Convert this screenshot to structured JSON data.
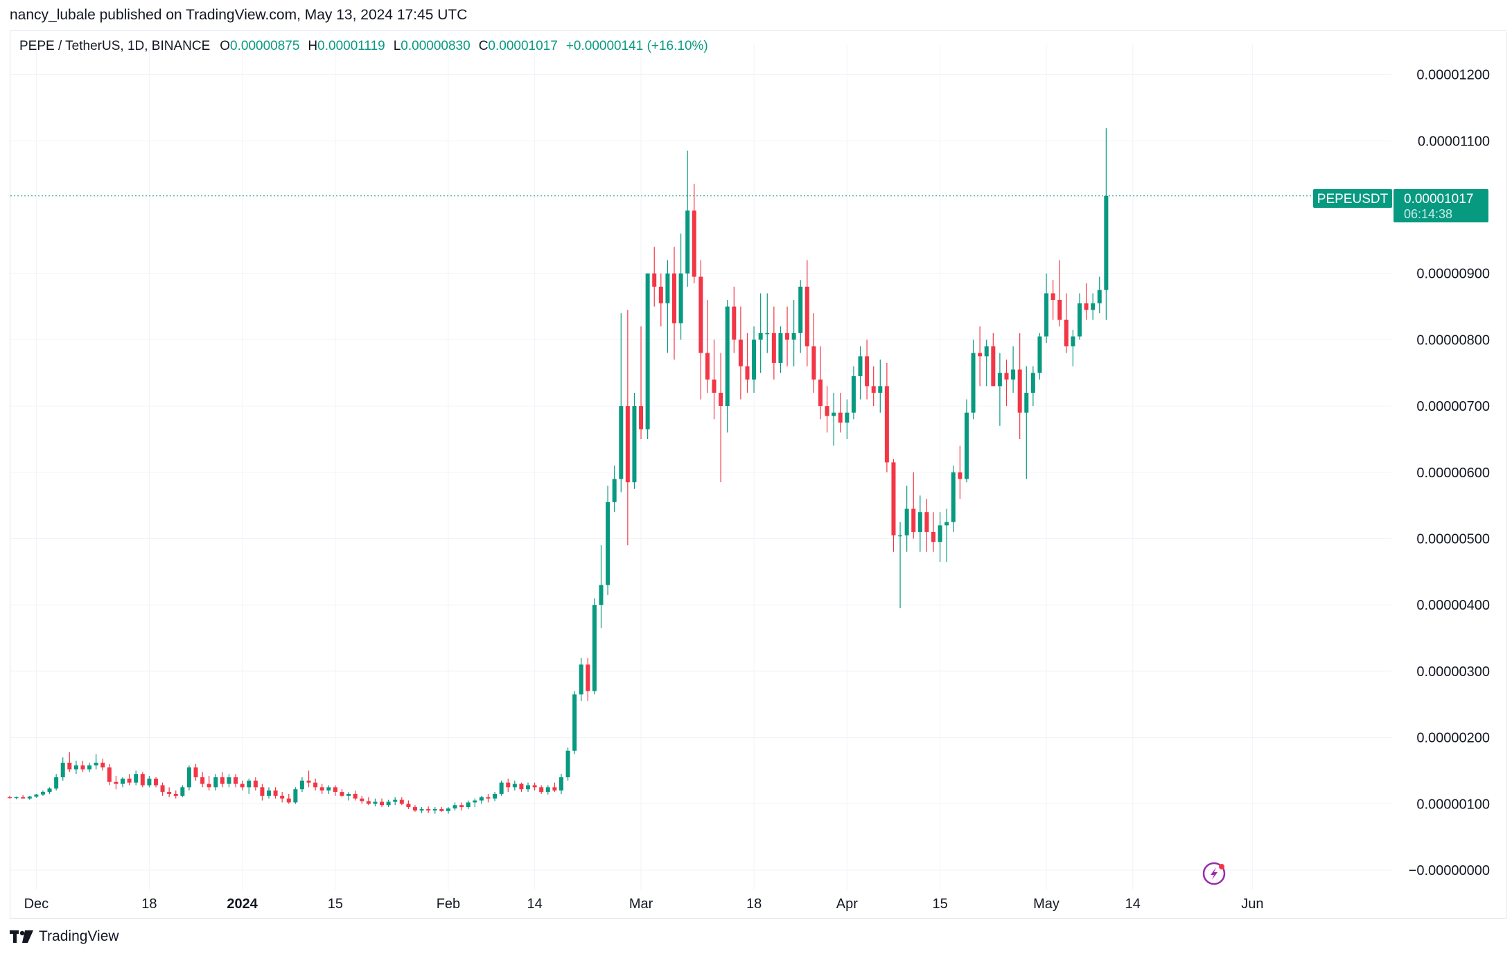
{
  "publisher": "nancy_lubale published on TradingView.com, May 13, 2024 17:45 UTC",
  "legend": {
    "symbol": "PEPE / TetherUS, 1D, BINANCE",
    "open_label": "O",
    "open": "0.00000875",
    "high_label": "H",
    "high": "0.00001119",
    "low_label": "L",
    "low": "0.00000830",
    "close_label": "C",
    "close": "0.00001017",
    "change": "+0.00000141 (+16.10%)"
  },
  "price_tag": {
    "ticker": "PEPEUSDT",
    "price": "0.00001017",
    "countdown": "06:14:38"
  },
  "brand": "TradingView",
  "colors": {
    "up": "#089981",
    "down": "#f23645",
    "grid": "#f0f3fa",
    "axis_text": "#131722"
  },
  "chart_data": {
    "type": "candlestick",
    "title": "PEPE / TetherUS, 1D, BINANCE",
    "ylim": [
      -1e-07,
      1.25e-05
    ],
    "y_ticks": [
      "0.00001200",
      "0.00001100",
      "0.00000900",
      "0.00000800",
      "0.00000700",
      "0.00000600",
      "0.00000500",
      "0.00000400",
      "0.00000300",
      "0.00000200",
      "0.00000100",
      "−0.00000000"
    ],
    "y_tick_values": [
      1.2e-05,
      1.1e-05,
      9e-06,
      8e-06,
      7e-06,
      6e-06,
      5e-06,
      4e-06,
      3e-06,
      2e-06,
      1e-06,
      0
    ],
    "x_ticks": [
      {
        "label": "Dec",
        "date": "2023-12-01"
      },
      {
        "label": "18",
        "date": "2023-12-18"
      },
      {
        "label": "2024",
        "date": "2024-01-01",
        "bold": true
      },
      {
        "label": "15",
        "date": "2024-01-15"
      },
      {
        "label": "Feb",
        "date": "2024-02-01"
      },
      {
        "label": "14",
        "date": "2024-02-14"
      },
      {
        "label": "Mar",
        "date": "2024-03-01"
      },
      {
        "label": "18",
        "date": "2024-03-18"
      },
      {
        "label": "Apr",
        "date": "2024-04-01"
      },
      {
        "label": "15",
        "date": "2024-04-15"
      },
      {
        "label": "May",
        "date": "2024-05-01"
      },
      {
        "label": "14",
        "date": "2024-05-14"
      },
      {
        "label": "Jun",
        "date": "2024-06-01"
      }
    ],
    "x_range": [
      "2023-11-27",
      "2024-06-05"
    ],
    "bars_start_date": "2023-11-27",
    "candles": [
      [
        1.1e-06,
        1.12e-06,
        1.08e-06,
        1.09e-06
      ],
      [
        1.09e-06,
        1.11e-06,
        1.07e-06,
        1.1e-06
      ],
      [
        1.1e-06,
        1.13e-06,
        1.08e-06,
        1.08e-06
      ],
      [
        1.08e-06,
        1.12e-06,
        1.06e-06,
        1.11e-06
      ],
      [
        1.11e-06,
        1.15e-06,
        1.09e-06,
        1.14e-06
      ],
      [
        1.14e-06,
        1.2e-06,
        1.12e-06,
        1.18e-06
      ],
      [
        1.18e-06,
        1.25e-06,
        1.15e-06,
        1.23e-06
      ],
      [
        1.23e-06,
        1.45e-06,
        1.2e-06,
        1.4e-06
      ],
      [
        1.4e-06,
        1.7e-06,
        1.35e-06,
        1.62e-06
      ],
      [
        1.62e-06,
        1.78e-06,
        1.48e-06,
        1.52e-06
      ],
      [
        1.52e-06,
        1.65e-06,
        1.45e-06,
        1.58e-06
      ],
      [
        1.58e-06,
        1.65e-06,
        1.48e-06,
        1.52e-06
      ],
      [
        1.52e-06,
        1.62e-06,
        1.48e-06,
        1.58e-06
      ],
      [
        1.58e-06,
        1.75e-06,
        1.52e-06,
        1.62e-06
      ],
      [
        1.62e-06,
        1.68e-06,
        1.5e-06,
        1.55e-06
      ],
      [
        1.55e-06,
        1.6e-06,
        1.28e-06,
        1.33e-06
      ],
      [
        1.33e-06,
        1.42e-06,
        1.22e-06,
        1.3e-06
      ],
      [
        1.3e-06,
        1.4e-06,
        1.25e-06,
        1.38e-06
      ],
      [
        1.38e-06,
        1.45e-06,
        1.28e-06,
        1.32e-06
      ],
      [
        1.32e-06,
        1.5e-06,
        1.28e-06,
        1.45e-06
      ],
      [
        1.45e-06,
        1.48e-06,
        1.25e-06,
        1.28e-06
      ],
      [
        1.28e-06,
        1.42e-06,
        1.25e-06,
        1.38e-06
      ],
      [
        1.38e-06,
        1.4e-06,
        1.25e-06,
        1.28e-06
      ],
      [
        1.28e-06,
        1.32e-06,
        1.12e-06,
        1.18e-06
      ],
      [
        1.18e-06,
        1.25e-06,
        1.1e-06,
        1.15e-06
      ],
      [
        1.15e-06,
        1.2e-06,
        1.08e-06,
        1.12e-06
      ],
      [
        1.12e-06,
        1.28e-06,
        1.1e-06,
        1.25e-06
      ],
      [
        1.25e-06,
        1.58e-06,
        1.2e-06,
        1.55e-06
      ],
      [
        1.55e-06,
        1.6e-06,
        1.35e-06,
        1.4e-06
      ],
      [
        1.4e-06,
        1.48e-06,
        1.25e-06,
        1.3e-06
      ],
      [
        1.3e-06,
        1.42e-06,
        1.2e-06,
        1.25e-06
      ],
      [
        1.25e-06,
        1.45e-06,
        1.2e-06,
        1.4e-06
      ],
      [
        1.4e-06,
        1.48e-06,
        1.25e-06,
        1.3e-06
      ],
      [
        1.3e-06,
        1.45e-06,
        1.25e-06,
        1.4e-06
      ],
      [
        1.4e-06,
        1.45e-06,
        1.25e-06,
        1.3e-06
      ],
      [
        1.3e-06,
        1.35e-06,
        1.2e-06,
        1.25e-06
      ],
      [
        1.25e-06,
        1.38e-06,
        1.15e-06,
        1.35e-06
      ],
      [
        1.35e-06,
        1.4e-06,
        1.2e-06,
        1.25e-06
      ],
      [
        1.25e-06,
        1.3e-06,
        1.05e-06,
        1.12e-06
      ],
      [
        1.12e-06,
        1.25e-06,
        1.08e-06,
        1.2e-06
      ],
      [
        1.2e-06,
        1.25e-06,
        1.08e-06,
        1.12e-06
      ],
      [
        1.12e-06,
        1.18e-06,
        1.02e-06,
        1.08e-06
      ],
      [
        1.08e-06,
        1.15e-06,
        1e-06,
        1.02e-06
      ],
      [
        1.02e-06,
        1.25e-06,
        1e-06,
        1.22e-06
      ],
      [
        1.22e-06,
        1.4e-06,
        1.18e-06,
        1.35e-06
      ],
      [
        1.35e-06,
        1.5e-06,
        1.25e-06,
        1.32e-06
      ],
      [
        1.32e-06,
        1.38e-06,
        1.2e-06,
        1.25e-06
      ],
      [
        1.25e-06,
        1.3e-06,
        1.15e-06,
        1.2e-06
      ],
      [
        1.2e-06,
        1.28e-06,
        1.15e-06,
        1.25e-06
      ],
      [
        1.25e-06,
        1.28e-06,
        1.12e-06,
        1.18e-06
      ],
      [
        1.18e-06,
        1.22e-06,
        1.1e-06,
        1.12e-06
      ],
      [
        1.12e-06,
        1.18e-06,
        1.05e-06,
        1.15e-06
      ],
      [
        1.15e-06,
        1.2e-06,
        1.05e-06,
        1.08e-06
      ],
      [
        1.08e-06,
        1.12e-06,
        1e-06,
        1.04e-06
      ],
      [
        1.04e-06,
        1.1e-06,
        9.8e-07,
        1e-06
      ],
      [
        1e-06,
        1.08e-06,
        9.6e-07,
        1.03e-06
      ],
      [
        1.03e-06,
        1.08e-06,
        9.5e-07,
        9.8e-07
      ],
      [
        9.8e-07,
        1.06e-06,
        9.5e-07,
        1.03e-06
      ],
      [
        1.03e-06,
        1.1e-06,
        9.8e-07,
        1.06e-06
      ],
      [
        1.06e-06,
        1.1e-06,
        9.8e-07,
        1e-06
      ],
      [
        1e-06,
        1.05e-06,
        9.2e-07,
        9.5e-07
      ],
      [
        9.5e-07,
        9.8e-07,
        8.8e-07,
        9e-07
      ],
      [
        9e-07,
        9.5e-07,
        8.6e-07,
        9.2e-07
      ],
      [
        9.2e-07,
        9.6e-07,
        8.6e-07,
        9e-07
      ],
      [
        9e-07,
        9.5e-07,
        8.5e-07,
        9.2e-07
      ],
      [
        9.2e-07,
        9.5e-07,
        8.8e-07,
        8.9e-07
      ],
      [
        8.9e-07,
        9.5e-07,
        8.5e-07,
        9.3e-07
      ],
      [
        9.3e-07,
        1.02e-06,
        9e-07,
        9.8e-07
      ],
      [
        9.8e-07,
        1.02e-06,
        9e-07,
        9.5e-07
      ],
      [
        9.5e-07,
        1.05e-06,
        9.2e-07,
        1.02e-06
      ],
      [
        1.02e-06,
        1.08e-06,
        9.5e-07,
        1.05e-06
      ],
      [
        1.05e-06,
        1.12e-06,
        1e-06,
        1.1e-06
      ],
      [
        1.1e-06,
        1.15e-06,
        1.02e-06,
        1.08e-06
      ],
      [
        1.08e-06,
        1.18e-06,
        1.04e-06,
        1.15e-06
      ],
      [
        1.15e-06,
        1.35e-06,
        1.12e-06,
        1.32e-06
      ],
      [
        1.32e-06,
        1.38e-06,
        1.18e-06,
        1.25e-06
      ],
      [
        1.25e-06,
        1.35e-06,
        1.2e-06,
        1.3e-06
      ],
      [
        1.3e-06,
        1.32e-06,
        1.18e-06,
        1.22e-06
      ],
      [
        1.22e-06,
        1.32e-06,
        1.18e-06,
        1.28e-06
      ],
      [
        1.28e-06,
        1.32e-06,
        1.2e-06,
        1.25e-06
      ],
      [
        1.25e-06,
        1.28e-06,
        1.15e-06,
        1.18e-06
      ],
      [
        1.18e-06,
        1.28e-06,
        1.14e-06,
        1.25e-06
      ],
      [
        1.25e-06,
        1.32e-06,
        1.18e-06,
        1.2e-06
      ],
      [
        1.2e-06,
        1.45e-06,
        1.15e-06,
        1.4e-06
      ],
      [
        1.4e-06,
        1.85e-06,
        1.35e-06,
        1.8e-06
      ],
      [
        1.8e-06,
        2.7e-06,
        1.75e-06,
        2.65e-06
      ],
      [
        2.65e-06,
        3.2e-06,
        2.55e-06,
        3.1e-06
      ],
      [
        3.1e-06,
        3.2e-06,
        2.55e-06,
        2.7e-06
      ],
      [
        2.7e-06,
        4.1e-06,
        2.65e-06,
        4e-06
      ],
      [
        4e-06,
        4.9e-06,
        3.65e-06,
        4.3e-06
      ],
      [
        4.3e-06,
        5.8e-06,
        4.15e-06,
        5.55e-06
      ],
      [
        5.55e-06,
        6.1e-06,
        5.4e-06,
        5.9e-06
      ],
      [
        5.9e-06,
        8.4e-06,
        5.7e-06,
        7e-06
      ],
      [
        7e-06,
        8.45e-06,
        4.9e-06,
        5.85e-06
      ],
      [
        5.85e-06,
        7.2e-06,
        5.75e-06,
        7e-06
      ],
      [
        7e-06,
        8.2e-06,
        6.5e-06,
        6.65e-06
      ],
      [
        6.65e-06,
        8.9e-06,
        6.5e-06,
        9e-06
      ],
      [
        9e-06,
        9.4e-06,
        8.5e-06,
        8.8e-06
      ],
      [
        8.8e-06,
        9e-06,
        8.2e-06,
        8.55e-06
      ],
      [
        8.55e-06,
        9.2e-06,
        7.8e-06,
        9e-06
      ],
      [
        9e-06,
        9.4e-06,
        7.7e-06,
        8.25e-06
      ],
      [
        8.25e-06,
        9.6e-06,
        8e-06,
        9e-06
      ],
      [
        9e-06,
        1.085e-05,
        8.8e-06,
        9.95e-06
      ],
      [
        9.95e-06,
        1.035e-05,
        8.85e-06,
        8.95e-06
      ],
      [
        8.95e-06,
        9.2e-06,
        7.1e-06,
        7.8e-06
      ],
      [
        7.8e-06,
        8.6e-06,
        7.2e-06,
        7.4e-06
      ],
      [
        7.4e-06,
        8e-06,
        6.8e-06,
        7.2e-06
      ],
      [
        7.2e-06,
        7.8e-06,
        5.85e-06,
        7e-06
      ],
      [
        7e-06,
        8.6e-06,
        6.6e-06,
        8.5e-06
      ],
      [
        8.5e-06,
        8.8e-06,
        7.8e-06,
        8e-06
      ],
      [
        8e-06,
        8.5e-06,
        7.1e-06,
        7.6e-06
      ],
      [
        7.6e-06,
        8.1e-06,
        7.2e-06,
        7.4e-06
      ],
      [
        7.4e-06,
        8.2e-06,
        7.2e-06,
        8e-06
      ],
      [
        8e-06,
        8.7e-06,
        7.5e-06,
        8.1e-06
      ],
      [
        8.1e-06,
        8.7e-06,
        7.8e-06,
        8.1e-06
      ],
      [
        8.1e-06,
        8.5e-06,
        7.4e-06,
        7.65e-06
      ],
      [
        7.65e-06,
        8.2e-06,
        7.5e-06,
        8.1e-06
      ],
      [
        8.1e-06,
        8.5e-06,
        7.6e-06,
        8e-06
      ],
      [
        8e-06,
        8.6e-06,
        7.6e-06,
        8.1e-06
      ],
      [
        8.1e-06,
        8.9e-06,
        7.8e-06,
        8.8e-06
      ],
      [
        8.8e-06,
        9.2e-06,
        7.6e-06,
        7.9e-06
      ],
      [
        7.9e-06,
        8.4e-06,
        7.2e-06,
        7.4e-06
      ],
      [
        7.4e-06,
        7.9e-06,
        6.8e-06,
        7e-06
      ],
      [
        7e-06,
        7.3e-06,
        6.6e-06,
        6.85e-06
      ],
      [
        6.85e-06,
        7.2e-06,
        6.4e-06,
        6.9e-06
      ],
      [
        6.9e-06,
        7.2e-06,
        6.6e-06,
        6.75e-06
      ],
      [
        6.75e-06,
        7.1e-06,
        6.5e-06,
        6.9e-06
      ],
      [
        6.9e-06,
        7.6e-06,
        6.8e-06,
        7.45e-06
      ],
      [
        7.45e-06,
        7.9e-06,
        7.1e-06,
        7.75e-06
      ],
      [
        7.75e-06,
        8e-06,
        7.1e-06,
        7.3e-06
      ],
      [
        7.3e-06,
        7.6e-06,
        7e-06,
        7.2e-06
      ],
      [
        7.2e-06,
        7.7e-06,
        6.9e-06,
        7.3e-06
      ],
      [
        7.3e-06,
        7.65e-06,
        6e-06,
        6.15e-06
      ],
      [
        6.15e-06,
        6.2e-06,
        4.8e-06,
        5.05e-06
      ],
      [
        5.05e-06,
        5.25e-06,
        3.95e-06,
        5.05e-06
      ],
      [
        5.05e-06,
        5.8e-06,
        4.8e-06,
        5.45e-06
      ],
      [
        5.45e-06,
        6e-06,
        5e-06,
        5.1e-06
      ],
      [
        5.1e-06,
        5.65e-06,
        4.8e-06,
        5.4e-06
      ],
      [
        5.4e-06,
        5.6e-06,
        4.8e-06,
        5.1e-06
      ],
      [
        5.1e-06,
        5.4e-06,
        4.8e-06,
        4.95e-06
      ],
      [
        4.95e-06,
        5.4e-06,
        4.65e-06,
        5.2e-06
      ],
      [
        5.2e-06,
        5.45e-06,
        4.65e-06,
        5.25e-06
      ],
      [
        5.25e-06,
        6.1e-06,
        5.1e-06,
        6e-06
      ],
      [
        6e-06,
        6.4e-06,
        5.6e-06,
        5.9e-06
      ],
      [
        5.9e-06,
        7.1e-06,
        5.85e-06,
        6.9e-06
      ],
      [
        6.9e-06,
        8e-06,
        6.8e-06,
        7.8e-06
      ],
      [
        7.8e-06,
        8.2e-06,
        7.3e-06,
        7.75e-06
      ],
      [
        7.75e-06,
        8e-06,
        7.3e-06,
        7.9e-06
      ],
      [
        7.9e-06,
        8.1e-06,
        7.4e-06,
        7.3e-06
      ],
      [
        7.3e-06,
        7.8e-06,
        6.7e-06,
        7.5e-06
      ],
      [
        7.5e-06,
        7.7e-06,
        7e-06,
        7.4e-06
      ],
      [
        7.4e-06,
        7.9e-06,
        7.2e-06,
        7.55e-06
      ],
      [
        7.55e-06,
        8.1e-06,
        6.5e-06,
        6.9e-06
      ],
      [
        6.9e-06,
        7.6e-06,
        5.9e-06,
        7.2e-06
      ],
      [
        7.2e-06,
        7.6e-06,
        7e-06,
        7.5e-06
      ],
      [
        7.5e-06,
        8.1e-06,
        7.4e-06,
        8.05e-06
      ],
      [
        8.05e-06,
        9e-06,
        7.95e-06,
        8.7e-06
      ],
      [
        8.7e-06,
        8.9e-06,
        8.3e-06,
        8.6e-06
      ],
      [
        8.6e-06,
        9.2e-06,
        8.2e-06,
        8.3e-06
      ],
      [
        8.3e-06,
        8.7e-06,
        7.8e-06,
        7.9e-06
      ],
      [
        7.9e-06,
        8.15e-06,
        7.6e-06,
        8.05e-06
      ],
      [
        8.05e-06,
        8.7e-06,
        8e-06,
        8.55e-06
      ],
      [
        8.55e-06,
        8.85e-06,
        8.3e-06,
        8.45e-06
      ],
      [
        8.45e-06,
        8.7e-06,
        8.3e-06,
        8.55e-06
      ],
      [
        8.55e-06,
        8.95e-06,
        8.4e-06,
        8.75e-06
      ],
      [
        8.75e-06,
        1.119e-05,
        8.3e-06,
        1.017e-05
      ]
    ]
  }
}
